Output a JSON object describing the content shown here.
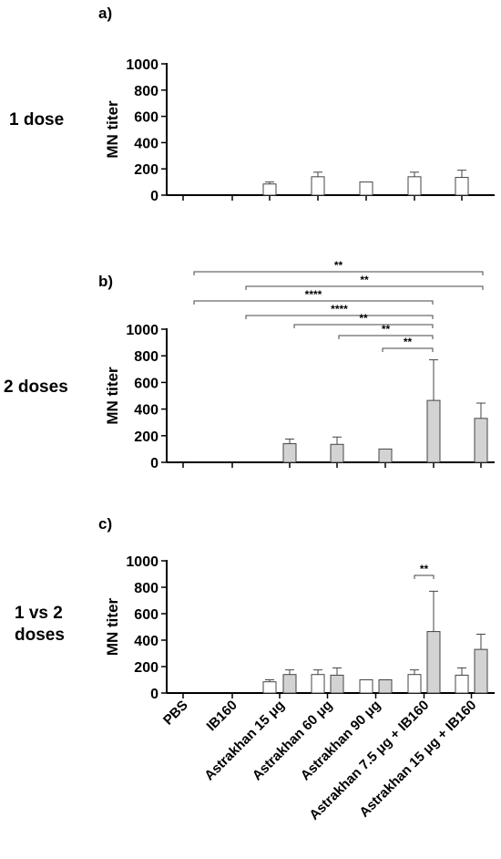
{
  "categories": [
    "PBS",
    "IB160",
    "Astrakhan 15 μg",
    "Astrakhan 60 μg",
    "Astrakhan 90 μg",
    "Astrakhan 7.5 μg + IB160",
    "Astrakhan 15 μg + IB160"
  ],
  "colors": {
    "one_dose": "#ffffff",
    "two_doses": "#d3d3d3",
    "stroke": "#444444"
  },
  "chart_data": [
    {
      "type": "bar",
      "panel": "a)",
      "row_label": "1 dose",
      "ylabel": "MN titer",
      "ylim": [
        0,
        1000
      ],
      "yticks": [
        0,
        200,
        400,
        600,
        800,
        1000
      ],
      "categories": [
        "PBS",
        "IB160",
        "Astrakhan 15 μg",
        "Astrakhan 60 μg",
        "Astrakhan 90 μg",
        "Astrakhan 7.5 μg + IB160",
        "Astrakhan 15 μg + IB160"
      ],
      "series": [
        {
          "fill": "#ffffff",
          "values": [
            0,
            0,
            85,
            140,
            100,
            140,
            135
          ],
          "errors": [
            0,
            0,
            15,
            35,
            0,
            35,
            55
          ]
        }
      ],
      "significance": []
    },
    {
      "type": "bar",
      "panel": "b)",
      "row_label": "2 doses",
      "ylabel": "MN titer",
      "ylim": [
        0,
        1000
      ],
      "yticks": [
        0,
        200,
        400,
        600,
        800,
        1000
      ],
      "categories": [
        "PBS",
        "IB160",
        "Astrakhan 15 μg",
        "Astrakhan 60 μg",
        "Astrakhan 90 μg",
        "Astrakhan 7.5 μg + IB160",
        "Astrakhan 15 μg + IB160"
      ],
      "series": [
        {
          "fill": "#d3d3d3",
          "values": [
            0,
            0,
            140,
            135,
            100,
            465,
            330
          ],
          "errors": [
            0,
            0,
            35,
            55,
            0,
            305,
            115
          ]
        }
      ],
      "significance": [
        {
          "from": 0,
          "to": 6,
          "label": "**"
        },
        {
          "from": 1,
          "to": 6,
          "label": "**"
        },
        {
          "from": 0,
          "to": 5,
          "label": "****"
        },
        {
          "from": 1,
          "to": 5,
          "label": "****"
        },
        {
          "from": 2,
          "to": 5,
          "label": "**"
        },
        {
          "from": 3,
          "to": 5,
          "label": "**"
        },
        {
          "from": 4,
          "to": 5,
          "label": "**"
        }
      ]
    },
    {
      "type": "bar",
      "panel": "c)",
      "row_label": "1 vs 2 doses",
      "ylabel": "MN titer",
      "ylim": [
        0,
        1000
      ],
      "yticks": [
        0,
        200,
        400,
        600,
        800,
        1000
      ],
      "categories": [
        "PBS",
        "IB160",
        "Astrakhan 15 μg",
        "Astrakhan 60 μg",
        "Astrakhan 90 μg",
        "Astrakhan 7.5 μg + IB160",
        "Astrakhan 15 μg + IB160"
      ],
      "series": [
        {
          "fill": "#ffffff",
          "values": [
            0,
            0,
            85,
            140,
            100,
            140,
            135
          ],
          "errors": [
            0,
            0,
            15,
            35,
            0,
            35,
            55
          ]
        },
        {
          "fill": "#d3d3d3",
          "values": [
            0,
            0,
            140,
            135,
            100,
            465,
            330
          ],
          "errors": [
            0,
            0,
            35,
            55,
            0,
            305,
            115
          ]
        }
      ],
      "significance": [
        {
          "category": 5,
          "label": "**"
        }
      ]
    }
  ]
}
